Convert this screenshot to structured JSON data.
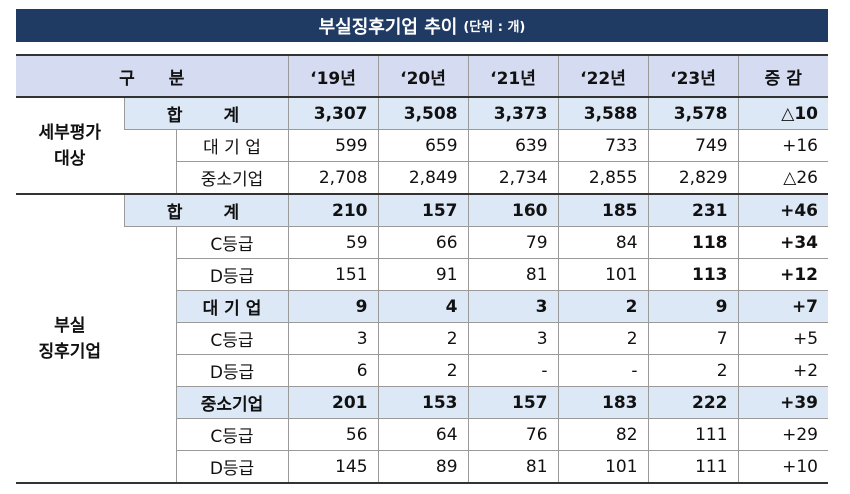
{
  "title": "부실징후기업 추이",
  "unit": "(단위 : 개)",
  "headers": [
    "구　　분",
    "‘19년",
    "‘20년",
    "‘21년",
    "‘22년",
    "‘23년",
    "증 감"
  ],
  "groups": {
    "eval": "세부평가\n대상",
    "distressed": "부실\n징후기업"
  },
  "rows": {
    "eval_total": {
      "label": "합　 계",
      "values": [
        "3,307",
        "3,508",
        "3,373",
        "3,588",
        "3,578",
        "△10"
      ]
    },
    "eval_large": {
      "label": "대 기 업",
      "values": [
        "599",
        "659",
        "639",
        "733",
        "749",
        "+16"
      ]
    },
    "eval_sme": {
      "label": "중소기업",
      "values": [
        "2,708",
        "2,849",
        "2,734",
        "2,855",
        "2,829",
        "△26"
      ]
    },
    "dist_total": {
      "label": "합　 계",
      "values": [
        "210",
        "157",
        "160",
        "185",
        "231",
        "+46"
      ]
    },
    "dist_total_c": {
      "label": "C등급",
      "values": [
        "59",
        "66",
        "79",
        "84",
        "118",
        "+34"
      ]
    },
    "dist_total_d": {
      "label": "D등급",
      "values": [
        "151",
        "91",
        "81",
        "101",
        "113",
        "+12"
      ]
    },
    "dist_large": {
      "label": "대 기 업",
      "values": [
        "9",
        "4",
        "3",
        "2",
        "9",
        "+7"
      ]
    },
    "dist_large_c": {
      "label": "C등급",
      "values": [
        "3",
        "2",
        "3",
        "2",
        "7",
        "+5"
      ]
    },
    "dist_large_d": {
      "label": "D등급",
      "values": [
        "6",
        "2",
        "-",
        "-",
        "2",
        "+2"
      ]
    },
    "dist_sme": {
      "label": "중소기업",
      "values": [
        "201",
        "153",
        "157",
        "183",
        "222",
        "+39"
      ]
    },
    "dist_sme_c": {
      "label": "C등급",
      "values": [
        "56",
        "64",
        "76",
        "82",
        "111",
        "+29"
      ]
    },
    "dist_sme_d": {
      "label": "D등급",
      "values": [
        "145",
        "89",
        "81",
        "101",
        "111",
        "+10"
      ]
    }
  }
}
